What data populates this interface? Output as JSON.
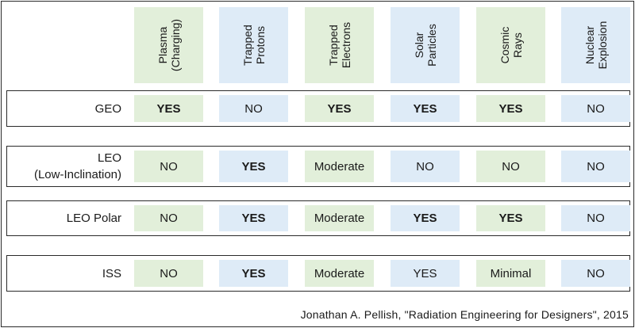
{
  "columns": [
    {
      "label": "Plasma\n(Charging)",
      "color": "green"
    },
    {
      "label": "Trapped\nProtons",
      "color": "blue"
    },
    {
      "label": "Trapped\nElectrons",
      "color": "green"
    },
    {
      "label": "Solar\nParticles",
      "color": "blue"
    },
    {
      "label": "Cosmic\nRays",
      "color": "green"
    },
    {
      "label": "Nuclear\nExplosion",
      "color": "blue"
    }
  ],
  "rows": [
    {
      "label": "GEO",
      "cells": [
        {
          "value": "YES",
          "bold": true
        },
        {
          "value": "NO",
          "bold": false
        },
        {
          "value": "YES",
          "bold": true
        },
        {
          "value": "YES",
          "bold": true
        },
        {
          "value": "YES",
          "bold": true
        },
        {
          "value": "NO",
          "bold": false
        }
      ]
    },
    {
      "label": "LEO\n(Low-Inclination)",
      "cells": [
        {
          "value": "NO",
          "bold": false
        },
        {
          "value": "YES",
          "bold": true
        },
        {
          "value": "Moderate",
          "bold": false
        },
        {
          "value": "NO",
          "bold": false
        },
        {
          "value": "NO",
          "bold": false
        },
        {
          "value": "NO",
          "bold": false
        }
      ]
    },
    {
      "label": "LEO Polar",
      "cells": [
        {
          "value": "NO",
          "bold": false
        },
        {
          "value": "YES",
          "bold": true
        },
        {
          "value": "Moderate",
          "bold": false
        },
        {
          "value": "YES",
          "bold": true
        },
        {
          "value": "YES",
          "bold": true
        },
        {
          "value": "NO",
          "bold": false
        }
      ]
    },
    {
      "label": "ISS",
      "cells": [
        {
          "value": "NO",
          "bold": false
        },
        {
          "value": "YES",
          "bold": true
        },
        {
          "value": "Moderate",
          "bold": false
        },
        {
          "value": "YES",
          "bold": false
        },
        {
          "value": "Minimal",
          "bold": false
        },
        {
          "value": "NO",
          "bold": false
        }
      ]
    }
  ],
  "colors": {
    "green": "#e2efda",
    "blue": "#deebf7",
    "border": "#2a2a2a"
  },
  "footer": "Jonathan A. Pellish, \"Radiation Engineering for Designers\", 2015"
}
